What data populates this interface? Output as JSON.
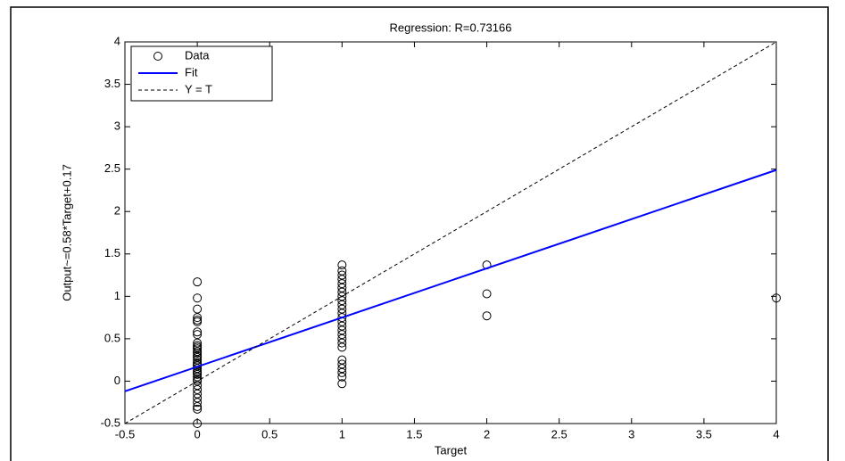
{
  "chart_data": {
    "type": "scatter",
    "title": "Regression: R=0.73166",
    "xlabel": "Target",
    "ylabel": "Output~=0.58*Target+0.17",
    "xlim": [
      -0.5,
      4
    ],
    "ylim": [
      -0.5,
      4
    ],
    "xticks": [
      -0.5,
      0,
      0.5,
      1,
      1.5,
      2,
      2.5,
      3,
      3.5,
      4
    ],
    "yticks": [
      -0.5,
      0,
      0.5,
      1,
      1.5,
      2,
      2.5,
      3,
      3.5,
      4
    ],
    "grid": false,
    "legend": "upper left",
    "series": [
      {
        "name": "Data",
        "color": "#000000",
        "style": "circle",
        "x": [
          0,
          0,
          0,
          0,
          0,
          0,
          0,
          0,
          0,
          0,
          0,
          0,
          0,
          0,
          0,
          0,
          0,
          0,
          0,
          0,
          0,
          0,
          0,
          0,
          0,
          0,
          0,
          0,
          0,
          0,
          0,
          0,
          0,
          0,
          0,
          1,
          1,
          1,
          1,
          1,
          1,
          1,
          1,
          1,
          1,
          1,
          1,
          1,
          1,
          1,
          1,
          1,
          1,
          1,
          1,
          1,
          1,
          1,
          1,
          1,
          1,
          2,
          2,
          2,
          4
        ],
        "values": [
          -0.5,
          -0.33,
          -0.3,
          -0.25,
          -0.2,
          -0.15,
          -0.1,
          -0.05,
          0,
          0.02,
          0.05,
          0.08,
          0.1,
          0.12,
          0.15,
          0.18,
          0.2,
          0.22,
          0.25,
          0.28,
          0.3,
          0.33,
          0.35,
          0.38,
          0.4,
          0.42,
          0.45,
          0.55,
          0.58,
          0.7,
          0.72,
          0.75,
          0.85,
          0.98,
          1.17,
          -0.03,
          0.05,
          0.1,
          0.15,
          0.2,
          0.25,
          0.4,
          0.45,
          0.5,
          0.55,
          0.6,
          0.65,
          0.7,
          0.75,
          0.8,
          0.85,
          0.9,
          0.95,
          1.0,
          1.05,
          1.1,
          1.15,
          1.2,
          1.25,
          1.3,
          1.37,
          1.37,
          1.03,
          0.77,
          0.98
        ]
      },
      {
        "name": "Fit",
        "color": "#0000ff",
        "style": "solid",
        "x": [
          -0.5,
          4
        ],
        "values": [
          -0.12,
          2.49
        ]
      },
      {
        "name": "Y = T",
        "color": "#000000",
        "style": "dashed",
        "x": [
          -0.5,
          4
        ],
        "values": [
          -0.5,
          4
        ]
      }
    ]
  }
}
